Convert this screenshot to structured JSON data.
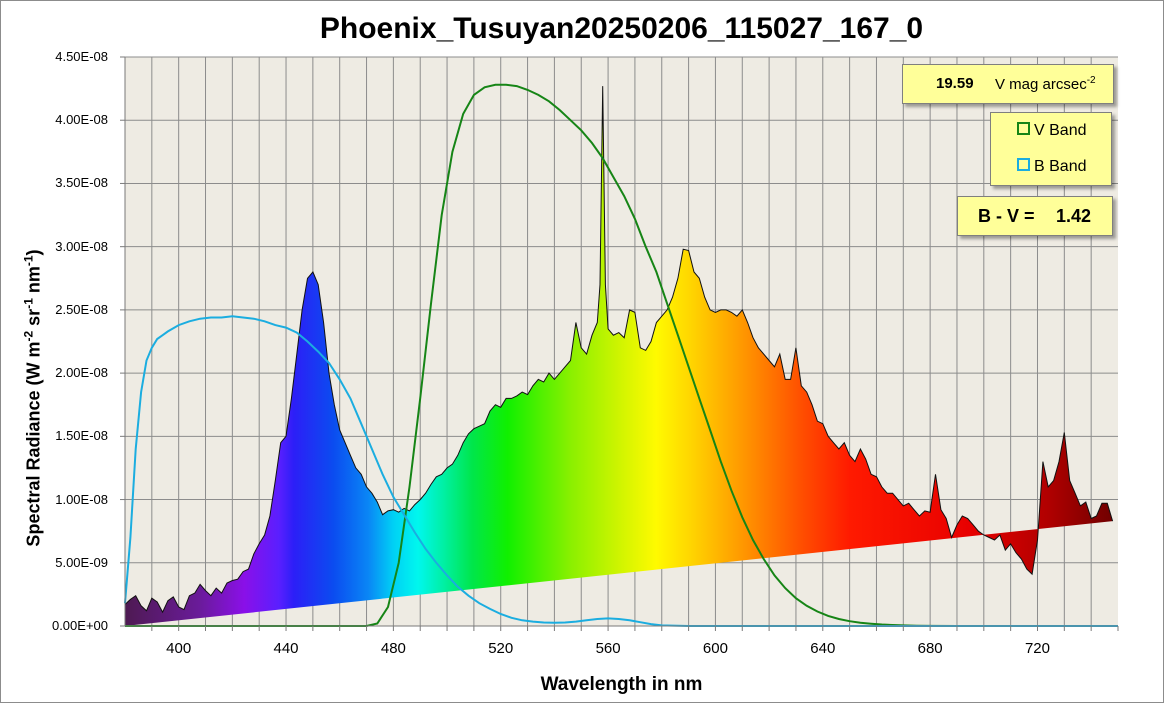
{
  "chart_data": {
    "type": "area",
    "title": "Phoenix_Tusuyan20250206_115027_167_0",
    "xlabel": "Wavelength in nm",
    "ylabel": "Spectral Radiance  (W m-2 sr-1 nm-1)",
    "ylabel_parts": [
      "Spectral Radiance  (W m",
      "-2",
      " sr",
      "-1",
      " nm",
      "-1",
      ")"
    ],
    "xlim": [
      380,
      750
    ],
    "ylim": [
      0,
      4.5e-08
    ],
    "grid": true,
    "x_ticks": [
      "400",
      "440",
      "480",
      "520",
      "560",
      "600",
      "640",
      "680",
      "720"
    ],
    "y_ticks": [
      "0.00E+00",
      "5.00E-09",
      "1.00E-08",
      "1.50E-08",
      "2.00E-08",
      "2.50E-08",
      "3.00E-08",
      "3.50E-08",
      "4.00E-08",
      "4.50E-08"
    ],
    "spectrum_x": [
      380,
      382,
      384,
      386,
      388,
      390,
      392,
      394,
      396,
      398,
      400,
      402,
      404,
      406,
      408,
      410,
      412,
      414,
      416,
      418,
      420,
      422,
      424,
      426,
      428,
      430,
      432,
      434,
      436,
      438,
      440,
      442,
      444,
      446,
      448,
      450,
      452,
      454,
      456,
      458,
      460,
      462,
      464,
      466,
      468,
      470,
      472,
      474,
      476,
      478,
      480,
      482,
      484,
      486,
      488,
      490,
      492,
      494,
      496,
      498,
      500,
      502,
      504,
      506,
      508,
      510,
      512,
      514,
      516,
      518,
      520,
      522,
      524,
      526,
      528,
      530,
      532,
      534,
      536,
      538,
      540,
      542,
      544,
      546,
      548,
      550,
      552,
      554,
      556,
      557,
      558,
      559,
      560,
      562,
      564,
      566,
      568,
      570,
      572,
      574,
      576,
      578,
      580,
      582,
      584,
      586,
      588,
      590,
      592,
      594,
      596,
      598,
      600,
      602,
      604,
      606,
      608,
      610,
      612,
      614,
      616,
      618,
      620,
      622,
      624,
      626,
      628,
      630,
      632,
      634,
      636,
      638,
      640,
      642,
      644,
      646,
      648,
      650,
      652,
      654,
      656,
      658,
      660,
      662,
      664,
      666,
      668,
      670,
      672,
      674,
      676,
      678,
      680,
      682,
      684,
      686,
      688,
      690,
      692,
      694,
      696,
      698,
      700,
      702,
      704,
      706,
      708,
      710,
      712,
      714,
      716,
      718,
      720,
      722,
      724,
      726,
      728,
      730,
      732,
      734,
      736,
      738,
      740,
      742,
      744,
      746,
      748,
      750
    ],
    "spectrum_y": [
      1.7e-09,
      2.1e-09,
      2.4e-09,
      1.6e-09,
      1.2e-09,
      2.2e-09,
      1.9e-09,
      1.1e-09,
      2e-09,
      2.3e-09,
      1.5e-09,
      1.3e-09,
      2.4e-09,
      2.6e-09,
      3.3e-09,
      2.8e-09,
      2.4e-09,
      3e-09,
      2.6e-09,
      3.4e-09,
      3.6e-09,
      3.7e-09,
      4.3e-09,
      4.5e-09,
      5.7e-09,
      6.5e-09,
      7.2e-09,
      8.7e-09,
      1.15e-08,
      1.45e-08,
      1.5e-08,
      1.8e-08,
      2.15e-08,
      2.5e-08,
      2.75e-08,
      2.8e-08,
      2.7e-08,
      2.4e-08,
      2e-08,
      1.75e-08,
      1.55e-08,
      1.45e-08,
      1.35e-08,
      1.25e-08,
      1.2e-08,
      1.1e-08,
      1.05e-08,
      9.8e-09,
      8.8e-09,
      9.1e-09,
      9.2e-09,
      9e-09,
      9.3e-09,
      9.1e-09,
      9.6e-09,
      1e-08,
      1.05e-08,
      1.12e-08,
      1.18e-08,
      1.2e-08,
      1.25e-08,
      1.28e-08,
      1.35e-08,
      1.45e-08,
      1.52e-08,
      1.56e-08,
      1.58e-08,
      1.6e-08,
      1.7e-08,
      1.75e-08,
      1.73e-08,
      1.8e-08,
      1.8e-08,
      1.82e-08,
      1.85e-08,
      1.83e-08,
      1.9e-08,
      1.95e-08,
      1.93e-08,
      2e-08,
      1.95e-08,
      2e-08,
      2.05e-08,
      2.1e-08,
      2.4e-08,
      2.2e-08,
      2.15e-08,
      2.3e-08,
      2.4e-08,
      2.7e-08,
      4.27e-08,
      2.7e-08,
      2.35e-08,
      2.3e-08,
      2.32e-08,
      2.28e-08,
      2.5e-08,
      2.48e-08,
      2.2e-08,
      2.18e-08,
      2.25e-08,
      2.4e-08,
      2.45e-08,
      2.5e-08,
      2.6e-08,
      2.75e-08,
      2.98e-08,
      2.97e-08,
      2.8e-08,
      2.75e-08,
      2.6e-08,
      2.5e-08,
      2.48e-08,
      2.5e-08,
      2.5e-08,
      2.48e-08,
      2.45e-08,
      2.5e-08,
      2.4e-08,
      2.28e-08,
      2.2e-08,
      2.15e-08,
      2.1e-08,
      2.05e-08,
      2.15e-08,
      1.95e-08,
      1.95e-08,
      2.2e-08,
      1.9e-08,
      1.85e-08,
      1.75e-08,
      1.62e-08,
      1.6e-08,
      1.5e-08,
      1.45e-08,
      1.4e-08,
      1.45e-08,
      1.35e-08,
      1.3e-08,
      1.4e-08,
      1.32e-08,
      1.2e-08,
      1.18e-08,
      1.1e-08,
      1.05e-08,
      1.05e-08,
      1e-08,
      9.5e-09,
      9.7e-09,
      9.2e-09,
      8.7e-09,
      9.1e-09,
      9e-09,
      1.2e-08,
      9.2e-09,
      8.5e-09,
      7e-09,
      8e-09,
      8.7e-09,
      8.5e-09,
      8e-09,
      7.5e-09,
      7.2e-09,
      7e-09,
      6.8e-09,
      7.2e-09,
      6e-09,
      6.5e-09,
      5.8e-09,
      5.3e-09,
      4.5e-09,
      4.1e-09,
      6.8e-09,
      1.3e-08,
      1.1e-08,
      1.15e-08,
      1.3e-08,
      1.53e-08,
      1.15e-08,
      1.05e-08,
      9.5e-09,
      9.8e-09,
      8.5e-09,
      8.7e-09,
      9.7e-09,
      9.7e-09,
      8.3e-09
    ],
    "series": [
      {
        "name": "V Band",
        "color": "#168516",
        "x": [
          380,
          470,
          474,
          478,
          482,
          486,
          490,
          494,
          498,
          502,
          506,
          510,
          514,
          518,
          522,
          526,
          530,
          534,
          538,
          542,
          546,
          550,
          554,
          558,
          562,
          566,
          570,
          574,
          578,
          582,
          586,
          590,
          594,
          598,
          602,
          606,
          610,
          614,
          618,
          622,
          626,
          630,
          634,
          638,
          642,
          646,
          650,
          654,
          658,
          662,
          666,
          670,
          675,
          680,
          690,
          700,
          720,
          750
        ],
        "y": [
          0,
          0,
          2e-10,
          1.5e-09,
          5e-09,
          1.1e-08,
          1.8e-08,
          2.55e-08,
          3.25e-08,
          3.75e-08,
          4.05e-08,
          4.2e-08,
          4.26e-08,
          4.28e-08,
          4.28e-08,
          4.27e-08,
          4.24e-08,
          4.2e-08,
          4.15e-08,
          4.08e-08,
          4e-08,
          3.92e-08,
          3.82e-08,
          3.7e-08,
          3.55e-08,
          3.4e-08,
          3.22e-08,
          3e-08,
          2.8e-08,
          2.55e-08,
          2.3e-08,
          2.05e-08,
          1.8e-08,
          1.55e-08,
          1.3e-08,
          1.07e-08,
          8.6e-09,
          6.8e-09,
          5.3e-09,
          4e-09,
          3e-09,
          2.2e-09,
          1.6e-09,
          1.15e-09,
          8e-10,
          5.5e-10,
          3.8e-10,
          2.6e-10,
          1.8e-10,
          1.2e-10,
          8e-11,
          5e-11,
          2e-11,
          1e-11,
          0,
          0,
          0,
          0
        ]
      },
      {
        "name": "B Band",
        "color": "#1bade0",
        "x": [
          380,
          382,
          384,
          386,
          388,
          390,
          392,
          394,
          396,
          400,
          404,
          408,
          412,
          416,
          420,
          424,
          428,
          432,
          436,
          440,
          444,
          448,
          452,
          456,
          460,
          464,
          468,
          472,
          476,
          480,
          484,
          488,
          492,
          496,
          500,
          504,
          508,
          512,
          516,
          520,
          524,
          528,
          532,
          536,
          540,
          544,
          548,
          552,
          556,
          560,
          564,
          568,
          572,
          576,
          580,
          590,
          750
        ],
        "y": [
          1.8e-09,
          7e-09,
          1.4e-08,
          1.85e-08,
          2.1e-08,
          2.2e-08,
          2.27e-08,
          2.3e-08,
          2.33e-08,
          2.38e-08,
          2.41e-08,
          2.43e-08,
          2.44e-08,
          2.44e-08,
          2.45e-08,
          2.44e-08,
          2.43e-08,
          2.41e-08,
          2.38e-08,
          2.36e-08,
          2.32e-08,
          2.25e-08,
          2.17e-08,
          2.08e-08,
          1.95e-08,
          1.8e-08,
          1.6e-08,
          1.4e-08,
          1.2e-08,
          1.02e-08,
          8.8e-09,
          7.4e-09,
          6.1e-09,
          5e-09,
          4e-09,
          3.1e-09,
          2.4e-09,
          1.8e-09,
          1.35e-09,
          9.5e-10,
          6.5e-10,
          4.5e-10,
          3.5e-10,
          2.8e-10,
          2.6e-10,
          2.8e-10,
          3.5e-10,
          4.5e-10,
          5.5e-10,
          6e-10,
          5.5e-10,
          4.5e-10,
          3e-10,
          1.5e-10,
          5e-11,
          0,
          0
        ]
      }
    ]
  },
  "mag_box": {
    "value": "19.59",
    "unit": "V mag arcsec",
    "unit_sup": "-2"
  },
  "legend": {
    "v_label": "V Band",
    "b_label": "B Band"
  },
  "bv_box": {
    "label": "B - V =",
    "value": "1.42"
  },
  "colors": {
    "plot_bg": "#eeebe3",
    "grid": "#8c8c8c",
    "box_bg": "#ffff99"
  }
}
